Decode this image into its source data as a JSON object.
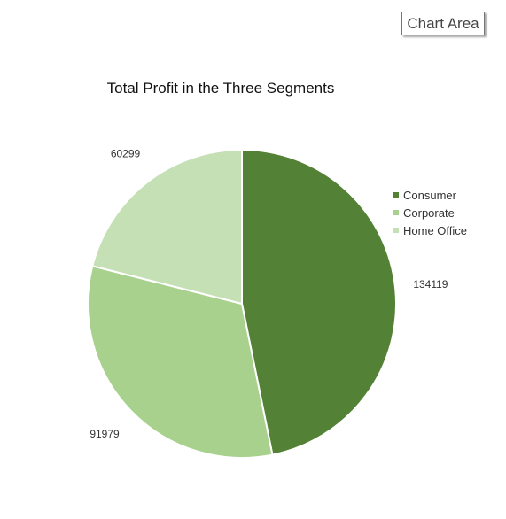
{
  "tooltip": {
    "label": "Chart Area"
  },
  "chart_data": {
    "type": "pie",
    "title": "Total Profit in the Three Segments",
    "categories": [
      "Consumer",
      "Corporate",
      "Home Office"
    ],
    "values": [
      134119,
      91979,
      60299
    ],
    "colors": [
      "#538135",
      "#a9d18e",
      "#c5e0b4"
    ],
    "legend": "right"
  }
}
